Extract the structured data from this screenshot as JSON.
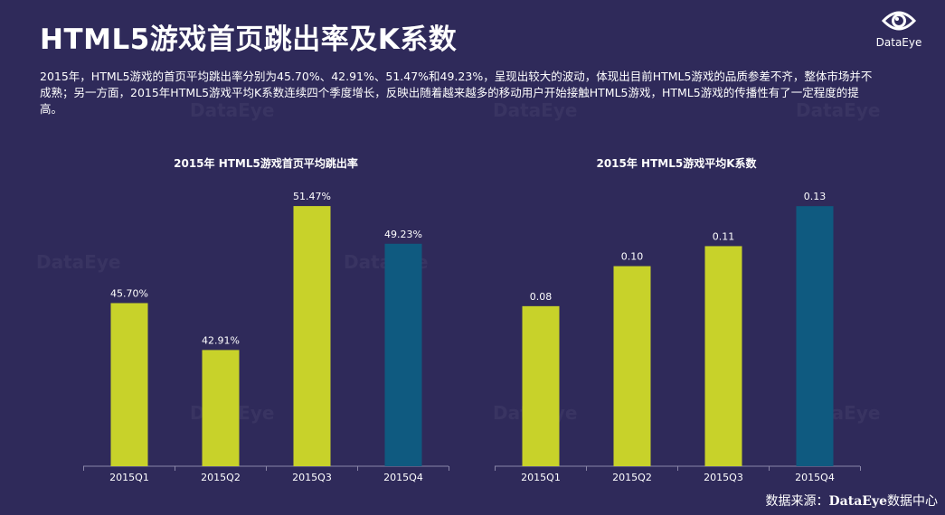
{
  "page": {
    "title": "HTML5游戏首页跳出率及K系数",
    "description": "2015年，HTML5游戏的首页平均跳出率分别为45.70%、42.91%、51.47%和49.23%，呈现出较大的波动，体现出目前HTML5游戏的品质参差不齐，整体市场并不成熟；另一方面，2015年HTML5游戏平均K系数连续四个季度增长，反映出随着越来越多的移动用户开始接触HTML5游戏，HTML5游戏的传播性有了一定程度的提高。",
    "logo_text": "DataEye",
    "watermark_text": "DataEye",
    "source_prefix": "数据来源：",
    "source_brand": "DataEye",
    "source_suffix": "数据中心"
  },
  "colors": {
    "background": "#2f2a5a",
    "bar_lime": "#c8d22a",
    "bar_blue": "#0f5a80",
    "axis": "#8a86a8"
  },
  "chart_data": [
    {
      "type": "bar",
      "title": "2015年 HTML5游戏首页平均跳出率",
      "categories": [
        "2015Q1",
        "2015Q2",
        "2015Q3",
        "2015Q4"
      ],
      "values": [
        45.7,
        42.91,
        51.47,
        49.23
      ],
      "labels": [
        "45.70%",
        "42.91%",
        "51.47%",
        "49.23%"
      ],
      "bar_colors": [
        "#c8d22a",
        "#c8d22a",
        "#c8d22a",
        "#0f5a80"
      ],
      "ylim": [
        36,
        54
      ],
      "grid": false
    },
    {
      "type": "bar",
      "title": "2015年 HTML5游戏平均K系数",
      "categories": [
        "2015Q1",
        "2015Q2",
        "2015Q3",
        "2015Q4"
      ],
      "values": [
        0.08,
        0.1,
        0.11,
        0.13
      ],
      "labels": [
        "0.08",
        "0.10",
        "0.11",
        "0.13"
      ],
      "bar_colors": [
        "#c8d22a",
        "#c8d22a",
        "#c8d22a",
        "#0f5a80"
      ],
      "ylim": [
        0,
        0.14
      ],
      "grid": false
    }
  ]
}
